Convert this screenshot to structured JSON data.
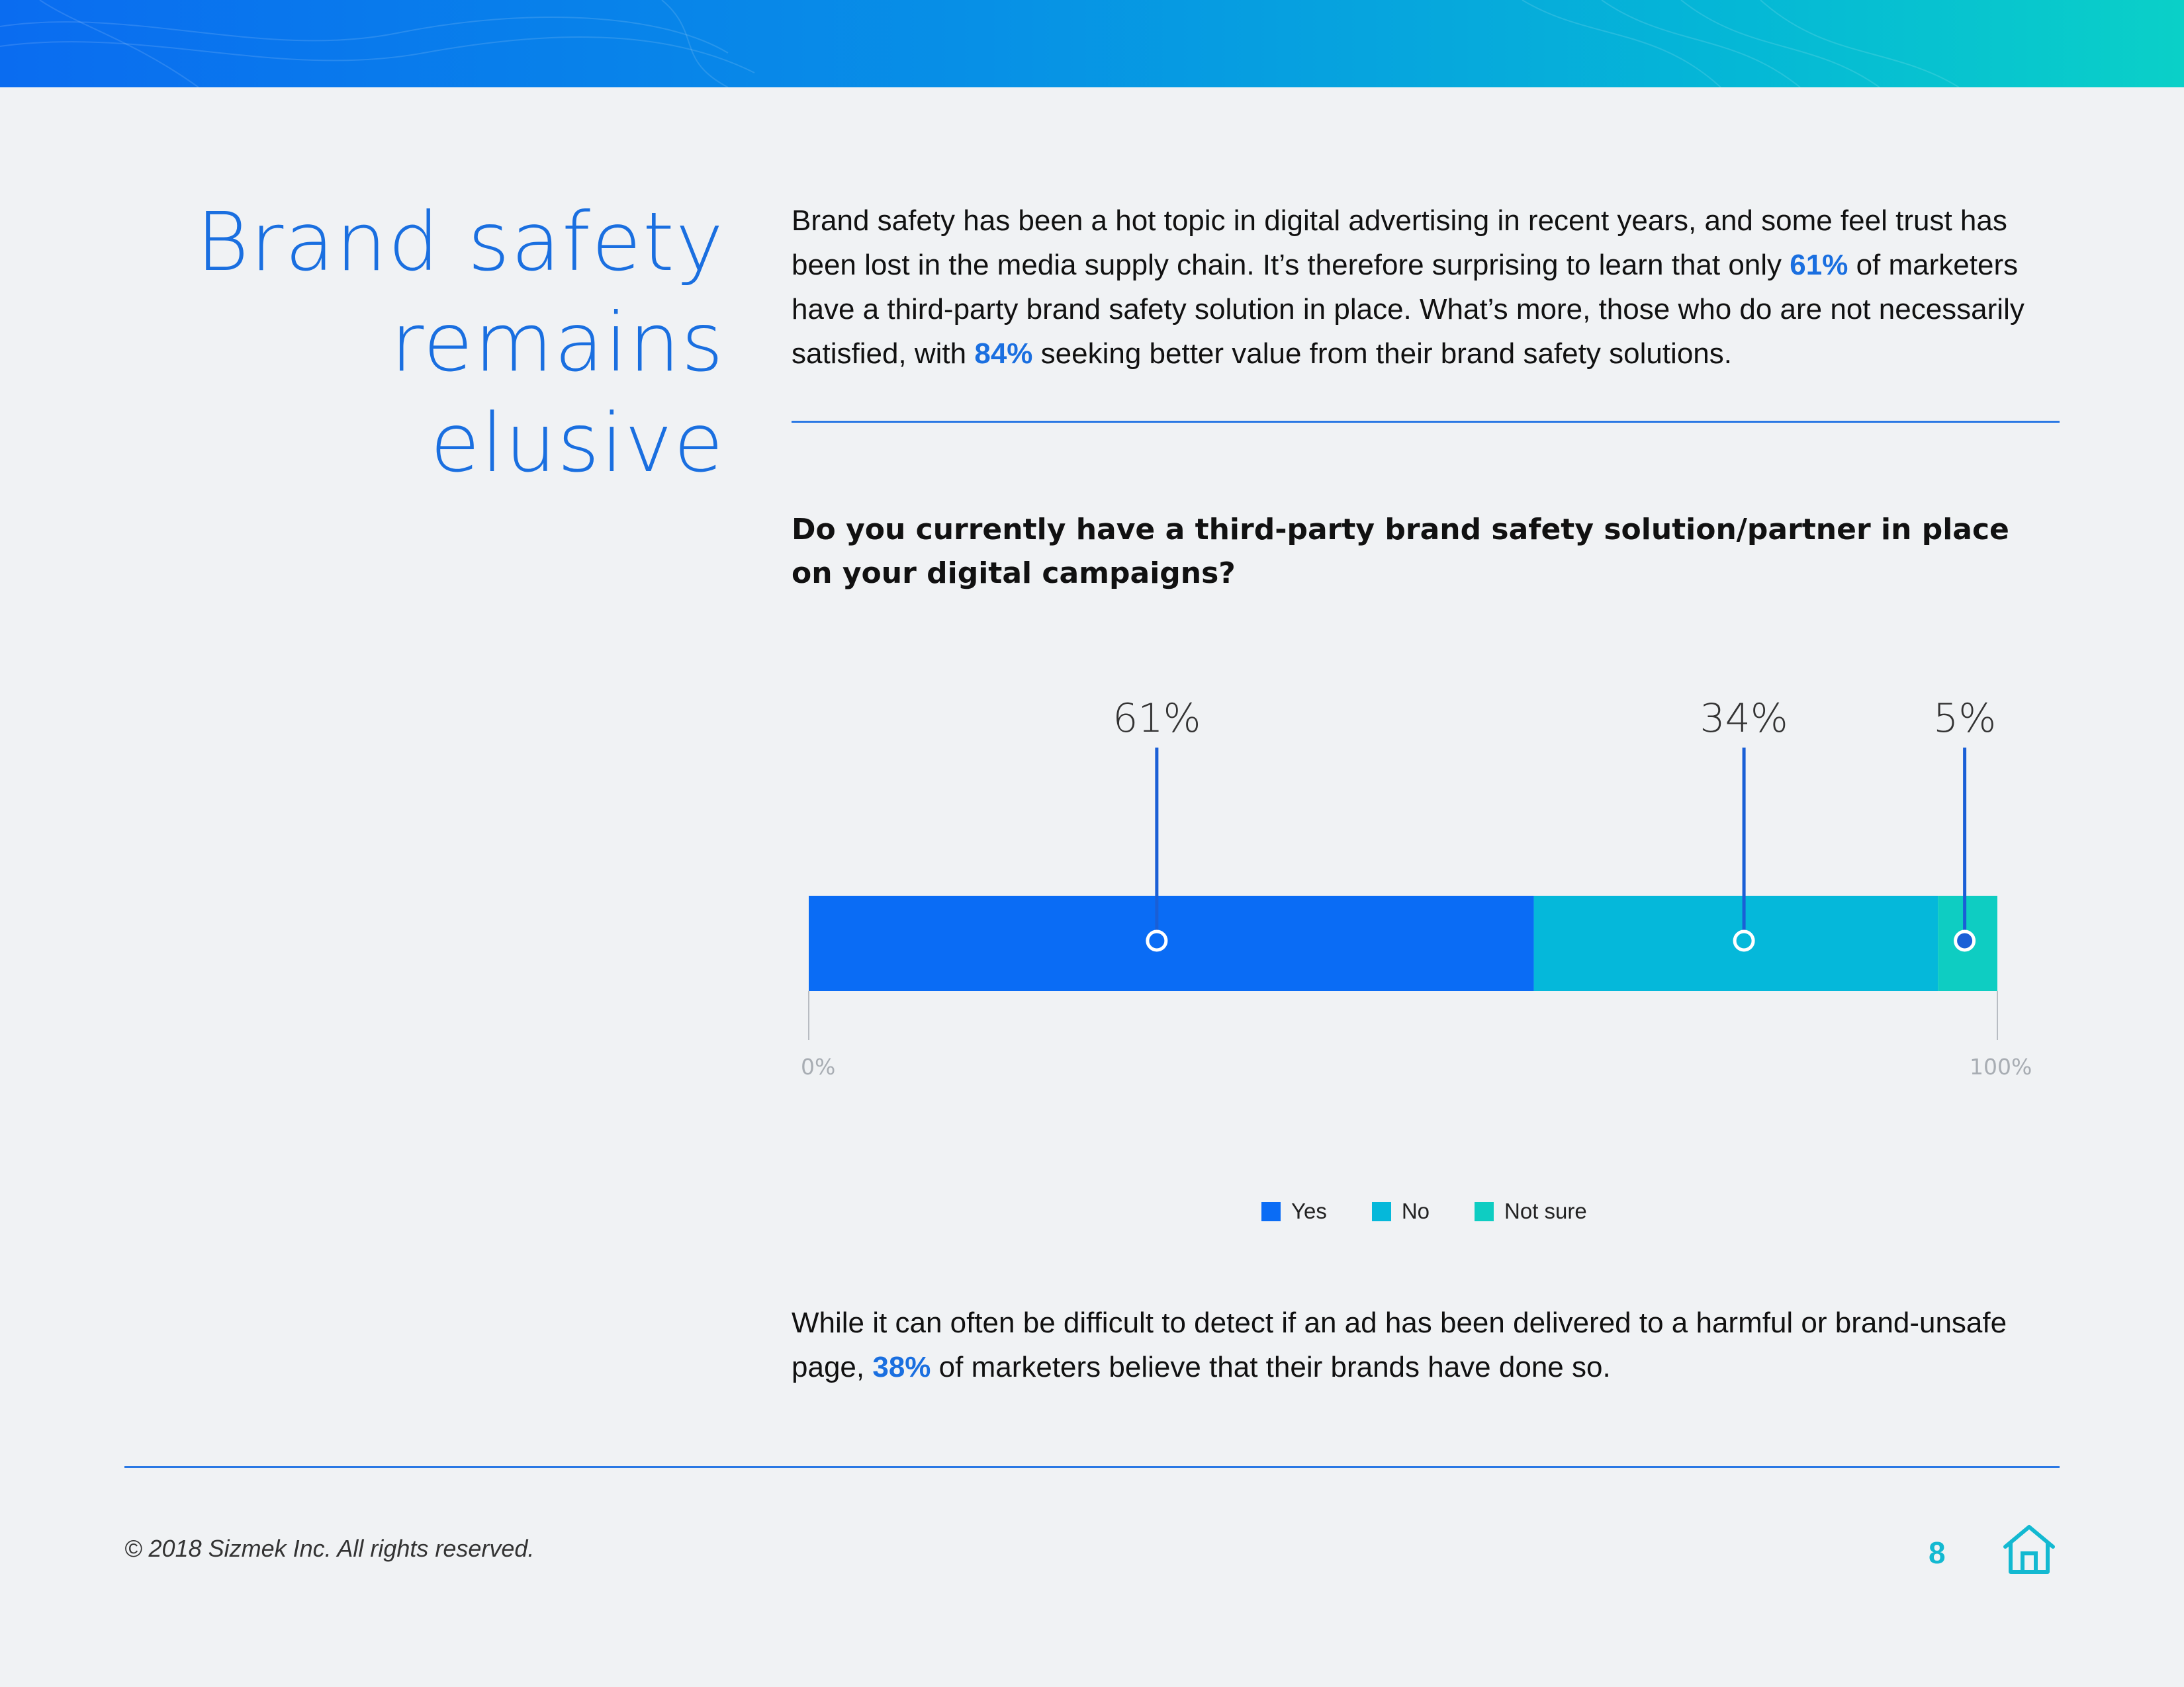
{
  "colors": {
    "accent": "#1a6fe0",
    "yes": "#0a6cf5",
    "no": "#05b8da",
    "not_sure": "#0ecdc2",
    "page_num": "#13b9d1"
  },
  "title": {
    "line1": "Brand safety",
    "line2": "remains elusive"
  },
  "intro": {
    "p1": "Brand safety has been a hot topic in digital advertising in recent years, and some feel trust has been lost in the media supply chain. It’s therefore surprising to learn that only ",
    "hl1": "61%",
    "p2": " of marketers have a third-party brand safety solution in place. What’s more, those who do are not necessarily satisfied, with ",
    "hl2": "84%",
    "p3": " seeking better value from their brand safety solutions."
  },
  "chart_data": {
    "type": "bar",
    "orientation": "horizontal-stacked",
    "title": "Do you currently have a third-party brand safety solution/partner in place on your digital campaigns?",
    "categories": [
      "Yes",
      "No",
      "Not sure"
    ],
    "values": [
      61,
      34,
      5
    ],
    "data_labels": [
      "61%",
      "34%",
      "5%"
    ],
    "axis_labels": {
      "min": "0%",
      "max": "100%"
    },
    "xlim": [
      0,
      100
    ],
    "legend": [
      "Yes",
      "No",
      "Not sure"
    ],
    "legend_position": "bottom-center"
  },
  "bottom": {
    "p1": "While it can often be difficult to detect if an ad has been delivered to a harmful or brand-unsafe page, ",
    "hl": "38%",
    "p2": " of marketers believe that their brands have done so."
  },
  "footer": {
    "copyright": "© 2018 Sizmek Inc. All rights reserved.",
    "page_number": "8",
    "home_icon": "home-icon"
  }
}
